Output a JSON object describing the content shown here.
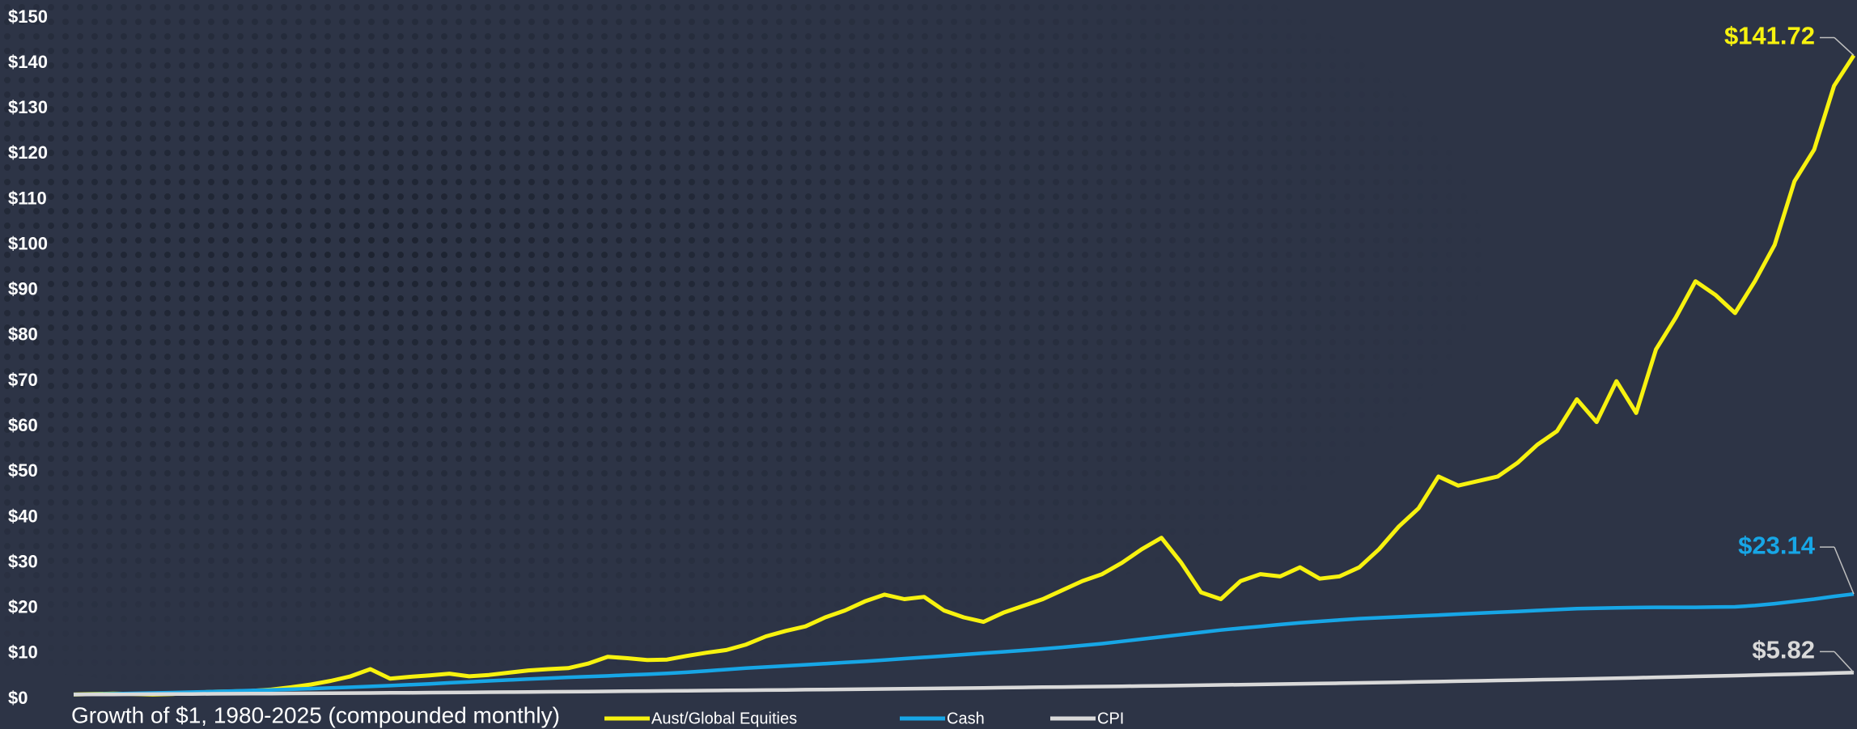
{
  "chart_data": {
    "type": "line",
    "title": "Growth of $1, 1980-2025 (compounded monthly)",
    "ylim": [
      0,
      150
    ],
    "yticks": [
      {
        "value": 0,
        "label": "$0"
      },
      {
        "value": 10,
        "label": "$10"
      },
      {
        "value": 20,
        "label": "$20"
      },
      {
        "value": 30,
        "label": "$30"
      },
      {
        "value": 40,
        "label": "$40"
      },
      {
        "value": 50,
        "label": "$50"
      },
      {
        "value": 60,
        "label": "$60"
      },
      {
        "value": 70,
        "label": "$70"
      },
      {
        "value": 80,
        "label": "$80"
      },
      {
        "value": 90,
        "label": "$90"
      },
      {
        "value": 100,
        "label": "$100"
      },
      {
        "value": 110,
        "label": "$110"
      },
      {
        "value": 120,
        "label": "$120"
      },
      {
        "value": 130,
        "label": "$130"
      },
      {
        "value": 140,
        "label": "$140"
      },
      {
        "value": 150,
        "label": "$150"
      }
    ],
    "grid": false,
    "legend": "bottom",
    "series": [
      {
        "name": "Aust/Global Equities",
        "color": "#f7f20f",
        "values": [
          1.0,
          1.1,
          1.2,
          1.1,
          1.0,
          1.1,
          1.4,
          1.6,
          1.7,
          1.8,
          2.1,
          2.6,
          3.2,
          4.0,
          5.0,
          6.6,
          4.5,
          4.9,
          5.2,
          5.6,
          5.0,
          5.3,
          5.8,
          6.3,
          6.6,
          6.8,
          7.8,
          9.3,
          9.0,
          8.6,
          8.7,
          9.5,
          10.2,
          10.8,
          12.0,
          13.8,
          15.0,
          16.0,
          18.0,
          19.5,
          21.5,
          23.0,
          22.0,
          22.5,
          19.5,
          18.0,
          17.0,
          19.0,
          20.5,
          22.0,
          24.0,
          26.0,
          27.5,
          30.0,
          33.0,
          35.5,
          30.0,
          23.5,
          22.0,
          26.0,
          27.5,
          27.0,
          29.0,
          26.5,
          27.0,
          29.0,
          33.0,
          38.0,
          42.0,
          49.0,
          47.0,
          48.0,
          49.0,
          52.0,
          56.0,
          59.0,
          66.0,
          61.0,
          70.0,
          63.0,
          77.0,
          84.0,
          92.0,
          89.0,
          85.0,
          92.0,
          100.0,
          114.0,
          121.0,
          135.0,
          141.72
        ],
        "value_labels": [
          null,
          null,
          null,
          null,
          null,
          null,
          null,
          null,
          null,
          null,
          null,
          null,
          null,
          null,
          null,
          null,
          null,
          null,
          null,
          null,
          null,
          null,
          null,
          null,
          null,
          null,
          null,
          null,
          null,
          null,
          null,
          null,
          null,
          null,
          null,
          null,
          null,
          null,
          null,
          null,
          null,
          null,
          null,
          null,
          null,
          null,
          null,
          null,
          null,
          null,
          null,
          null,
          null,
          null,
          null,
          null,
          null,
          null,
          null,
          null,
          null,
          null,
          null,
          null,
          null,
          null,
          null,
          null,
          null,
          null,
          null,
          null,
          null,
          null,
          null,
          null,
          null,
          null,
          null,
          null,
          null,
          null,
          null,
          null,
          null,
          null,
          null,
          null,
          null,
          null,
          "$141.72"
        ]
      },
      {
        "name": "Cash",
        "color": "#17a6e6",
        "values": [
          1.0,
          1.07,
          1.15,
          1.24,
          1.33,
          1.43,
          1.53,
          1.64,
          1.76,
          1.88,
          2.0,
          2.15,
          2.3,
          2.45,
          2.6,
          2.78,
          2.95,
          3.15,
          3.35,
          3.58,
          3.8,
          4.0,
          4.2,
          4.4,
          4.6,
          4.8,
          4.95,
          5.1,
          5.3,
          5.45,
          5.65,
          5.9,
          6.2,
          6.5,
          6.8,
          7.05,
          7.3,
          7.55,
          7.8,
          8.05,
          8.3,
          8.6,
          8.9,
          9.2,
          9.5,
          9.8,
          10.1,
          10.4,
          10.7,
          11.05,
          11.4,
          11.8,
          12.2,
          12.7,
          13.2,
          13.7,
          14.2,
          14.7,
          15.2,
          15.6,
          16.0,
          16.4,
          16.8,
          17.1,
          17.4,
          17.7,
          17.9,
          18.1,
          18.3,
          18.5,
          18.7,
          18.9,
          19.1,
          19.3,
          19.5,
          19.7,
          19.9,
          20.0,
          20.1,
          20.15,
          20.2,
          20.2,
          20.2,
          20.25,
          20.3,
          20.6,
          21.0,
          21.5,
          22.0,
          22.6,
          23.14
        ],
        "value_labels": [
          null,
          null,
          null,
          null,
          null,
          null,
          null,
          null,
          null,
          null,
          null,
          null,
          null,
          null,
          null,
          null,
          null,
          null,
          null,
          null,
          null,
          null,
          null,
          null,
          null,
          null,
          null,
          null,
          null,
          null,
          null,
          null,
          null,
          null,
          null,
          null,
          null,
          null,
          null,
          null,
          null,
          null,
          null,
          null,
          null,
          null,
          null,
          null,
          null,
          null,
          null,
          null,
          null,
          null,
          null,
          null,
          null,
          null,
          null,
          null,
          null,
          null,
          null,
          null,
          null,
          null,
          null,
          null,
          null,
          null,
          null,
          null,
          null,
          null,
          null,
          null,
          null,
          null,
          null,
          null,
          null,
          null,
          null,
          null,
          null,
          null,
          null,
          null,
          null,
          null,
          "$23.14"
        ]
      },
      {
        "name": "CPI",
        "color": "#d9d9d9",
        "values": [
          1.0,
          1.02,
          1.04,
          1.06,
          1.08,
          1.1,
          1.13,
          1.15,
          1.17,
          1.19,
          1.22,
          1.24,
          1.26,
          1.29,
          1.31,
          1.34,
          1.37,
          1.39,
          1.42,
          1.45,
          1.48,
          1.51,
          1.54,
          1.57,
          1.6,
          1.63,
          1.66,
          1.7,
          1.73,
          1.76,
          1.8,
          1.83,
          1.87,
          1.91,
          1.94,
          1.98,
          2.02,
          2.06,
          2.1,
          2.14,
          2.19,
          2.23,
          2.27,
          2.32,
          2.36,
          2.41,
          2.46,
          2.51,
          2.56,
          2.61,
          2.66,
          2.71,
          2.76,
          2.82,
          2.87,
          2.93,
          2.99,
          3.05,
          3.11,
          3.17,
          3.23,
          3.3,
          3.36,
          3.43,
          3.49,
          3.56,
          3.63,
          3.71,
          3.78,
          3.85,
          3.93,
          4.01,
          4.09,
          4.17,
          4.25,
          4.33,
          4.42,
          4.51,
          4.6,
          4.69,
          4.79,
          4.88,
          4.98,
          5.07,
          5.17,
          5.28,
          5.38,
          5.49,
          5.6,
          5.71,
          5.82
        ],
        "value_labels": [
          null,
          null,
          null,
          null,
          null,
          null,
          null,
          null,
          null,
          null,
          null,
          null,
          null,
          null,
          null,
          null,
          null,
          null,
          null,
          null,
          null,
          null,
          null,
          null,
          null,
          null,
          null,
          null,
          null,
          null,
          null,
          null,
          null,
          null,
          null,
          null,
          null,
          null,
          null,
          null,
          null,
          null,
          null,
          null,
          null,
          null,
          null,
          null,
          null,
          null,
          null,
          null,
          null,
          null,
          null,
          null,
          null,
          null,
          null,
          null,
          null,
          null,
          null,
          null,
          null,
          null,
          null,
          null,
          null,
          null,
          null,
          null,
          null,
          null,
          null,
          null,
          null,
          null,
          null,
          null,
          null,
          null,
          null,
          null,
          null,
          null,
          null,
          null,
          null,
          null,
          "$5.82"
        ]
      }
    ]
  }
}
